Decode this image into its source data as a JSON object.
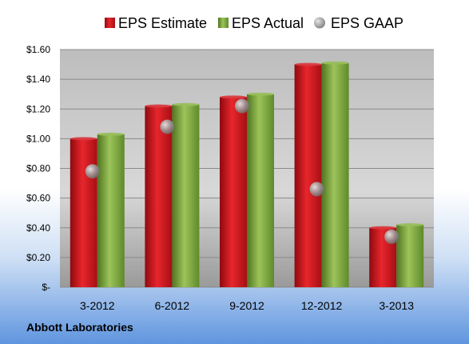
{
  "company": "Abbott Laboratories",
  "chart_data": {
    "type": "bar",
    "categories": [
      "3-2012",
      "6-2012",
      "9-2012",
      "12-2012",
      "3-2013"
    ],
    "series": [
      {
        "name": "EPS Estimate",
        "type": "bar",
        "color": "#c8161d",
        "values": [
          1.0,
          1.22,
          1.28,
          1.5,
          0.4
        ]
      },
      {
        "name": "EPS Actual",
        "type": "bar",
        "color": "#7aa33a",
        "values": [
          1.03,
          1.23,
          1.3,
          1.51,
          0.42
        ]
      },
      {
        "name": "EPS GAAP",
        "type": "scatter",
        "color": "#a0a4a8",
        "values": [
          0.78,
          1.08,
          1.22,
          0.66,
          0.34
        ]
      }
    ],
    "ylim": [
      0,
      1.6
    ],
    "yticks": [
      0,
      0.2,
      0.4,
      0.6,
      0.8,
      1.0,
      1.2,
      1.4,
      1.6
    ],
    "ytick_labels": [
      "$-",
      "$0.20",
      "$0.40",
      "$0.60",
      "$0.80",
      "$1.00",
      "$1.20",
      "$1.40",
      "$1.60"
    ],
    "grid": true,
    "legend_position": "top"
  }
}
